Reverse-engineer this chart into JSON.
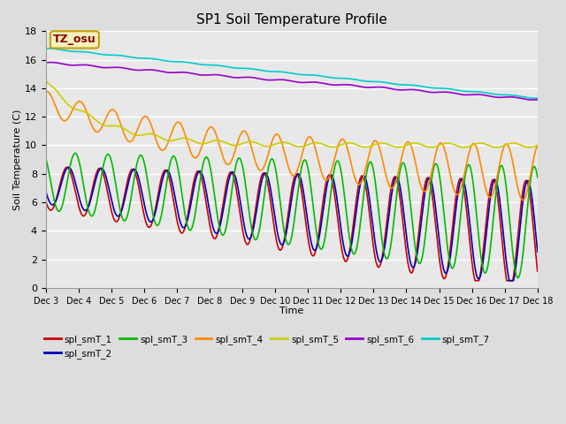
{
  "title": "SP1 Soil Temperature Profile",
  "xlabel": "Time",
  "ylabel": "Soil Temperature (C)",
  "ylim": [
    0,
    18
  ],
  "annotation_text": "TZ_osu",
  "annotation_bg": "#f5f0c0",
  "annotation_border": "#c8a000",
  "annotation_color": "#8b0000",
  "x_tick_labels": [
    "Dec 3",
    "Dec 4",
    "Dec 5",
    "Dec 6",
    "Dec 7",
    "Dec 8",
    "Dec 9",
    "Dec 10",
    "Dec 11",
    "Dec 12",
    "Dec 13",
    "Dec 14",
    "Dec 15",
    "Dec 16",
    "Dec 17",
    "Dec 18"
  ],
  "fig_bg": "#dddddd",
  "plot_bg": "#e8e8e8",
  "grid_color": "#ffffff",
  "series": {
    "spl_smT_1": {
      "color": "#cc0000",
      "lw": 1.2
    },
    "spl_smT_2": {
      "color": "#0000bb",
      "lw": 1.2
    },
    "spl_smT_3": {
      "color": "#00bb00",
      "lw": 1.2
    },
    "spl_smT_4": {
      "color": "#ff8800",
      "lw": 1.2
    },
    "spl_smT_5": {
      "color": "#cccc00",
      "lw": 1.2
    },
    "spl_smT_6": {
      "color": "#9900cc",
      "lw": 1.2
    },
    "spl_smT_7": {
      "color": "#00cccc",
      "lw": 1.2
    }
  }
}
